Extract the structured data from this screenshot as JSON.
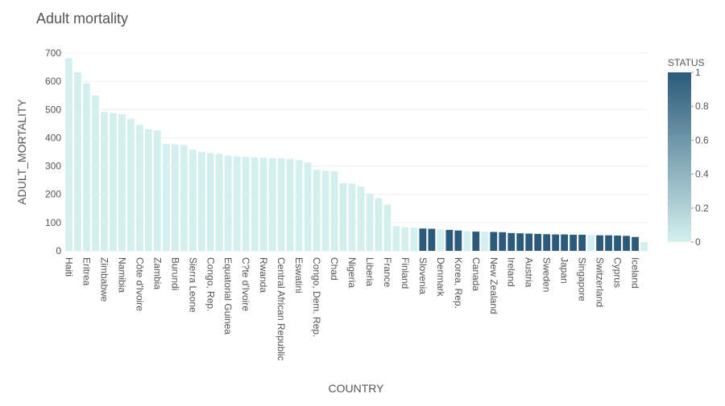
{
  "chart_data": {
    "type": "bar",
    "title": "Adult mortality",
    "x_label": "COUNTRY",
    "y_label": "ADULT_MORTALITY",
    "categories": [
      "Haiti",
      null,
      "Eritrea",
      null,
      "Zimbabwe",
      null,
      "Namibia",
      null,
      "Côte d'Ivoire",
      null,
      "Zambia",
      null,
      "Burundi",
      null,
      "Sierra Leone",
      null,
      "Congo, Rep.",
      null,
      "Equatorial Guinea",
      null,
      "C?te d'Ivoire",
      null,
      "Rwanda",
      null,
      "Central African Republic",
      null,
      "Eswatini",
      null,
      "Congo, Dem. Rep.",
      null,
      "Chad",
      null,
      "Nigeria",
      null,
      "Liberia",
      null,
      "France",
      null,
      "Finland",
      null,
      "Slovenia",
      null,
      "Denmark",
      null,
      "Korea, Rep.",
      null,
      "Canada",
      null,
      "New Zealand",
      null,
      "Ireland",
      null,
      "Austria",
      null,
      "Sweden",
      null,
      "Japan",
      null,
      "Singapore",
      null,
      "Switzerland",
      null,
      "Cyprus",
      null,
      "Iceland",
      null
    ],
    "values": [
      682,
      632,
      593,
      550,
      492,
      488,
      484,
      468,
      446,
      430,
      426,
      378,
      377,
      375,
      358,
      350,
      346,
      343,
      337,
      334,
      332,
      331,
      330,
      328,
      327,
      326,
      321,
      312,
      287,
      283,
      282,
      240,
      238,
      228,
      202,
      186,
      164,
      87,
      84,
      82,
      79,
      78,
      76,
      74,
      72,
      70,
      68,
      68,
      67,
      66,
      63,
      62,
      61,
      60,
      59,
      58,
      58,
      57,
      57,
      56,
      55,
      55,
      54,
      53,
      49,
      31
    ],
    "color_title": "STATUS",
    "color_values": [
      0,
      0,
      0,
      0,
      0,
      0,
      0,
      0,
      0,
      0,
      0,
      0,
      0,
      0,
      0,
      0,
      0,
      0,
      0,
      0,
      0,
      0,
      0,
      0,
      0,
      0,
      0,
      0,
      0,
      0,
      0,
      0,
      0,
      0,
      0,
      0,
      0,
      0,
      0,
      0,
      1,
      1,
      0,
      1,
      1,
      0,
      1,
      0,
      1,
      1,
      1,
      1,
      1,
      1,
      1,
      1,
      1,
      1,
      1,
      0,
      1,
      1,
      1,
      1,
      1,
      0
    ],
    "colorscale": [
      "#d4f0ee",
      "#2b5a7a"
    ],
    "clim": [
      0,
      1
    ],
    "cticks": [
      0,
      0.2,
      0.4,
      0.6,
      0.8,
      1
    ],
    "ylim": [
      0,
      700
    ],
    "yticks": [
      0,
      100,
      200,
      300,
      400,
      500,
      600,
      700
    ],
    "grid": true
  }
}
